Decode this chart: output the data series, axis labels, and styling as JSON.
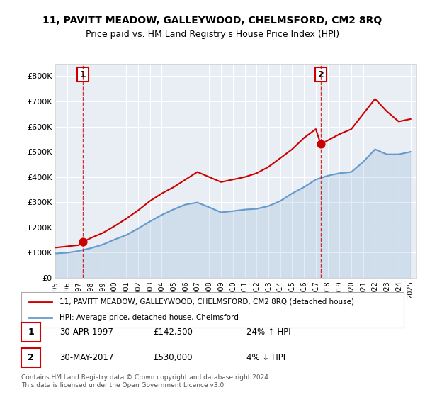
{
  "title": "11, PAVITT MEADOW, GALLEYWOOD, CHELMSFORD, CM2 8RQ",
  "subtitle": "Price paid vs. HM Land Registry's House Price Index (HPI)",
  "legend_line1": "11, PAVITT MEADOW, GALLEYWOOD, CHELMSFORD, CM2 8RQ (detached house)",
  "legend_line2": "HPI: Average price, detached house, Chelmsford",
  "footer": "Contains HM Land Registry data © Crown copyright and database right 2024.\nThis data is licensed under the Open Government Licence v3.0.",
  "transaction1_label": "1",
  "transaction1_date": "30-APR-1997",
  "transaction1_price": "£142,500",
  "transaction1_hpi": "24% ↑ HPI",
  "transaction1_year": 1997.33,
  "transaction1_value": 142500,
  "transaction2_label": "2",
  "transaction2_date": "30-MAY-2017",
  "transaction2_price": "£530,000",
  "transaction2_hpi": "4% ↓ HPI",
  "transaction2_year": 2017.42,
  "transaction2_value": 530000,
  "property_color": "#cc0000",
  "hpi_color": "#6699cc",
  "bg_color": "#e8eef4",
  "grid_color": "#ffffff",
  "ylim": [
    0,
    850000
  ],
  "xlim_start": 1995.0,
  "xlim_end": 2025.5,
  "yticks": [
    0,
    100000,
    200000,
    300000,
    400000,
    500000,
    600000,
    700000,
    800000
  ],
  "ytick_labels": [
    "£0",
    "£100K",
    "£200K",
    "£300K",
    "£400K",
    "£500K",
    "£600K",
    "£700K",
    "£800K"
  ],
  "xticks": [
    1995,
    1996,
    1997,
    1998,
    1999,
    2000,
    2001,
    2002,
    2003,
    2004,
    2005,
    2006,
    2007,
    2008,
    2009,
    2010,
    2011,
    2012,
    2013,
    2014,
    2015,
    2016,
    2017,
    2018,
    2019,
    2020,
    2021,
    2022,
    2023,
    2024,
    2025
  ],
  "hpi_years": [
    1995,
    1996,
    1997,
    1998,
    1999,
    2000,
    2001,
    2002,
    2003,
    2004,
    2005,
    2006,
    2007,
    2008,
    2009,
    2010,
    2011,
    2012,
    2013,
    2014,
    2015,
    2016,
    2017,
    2018,
    2019,
    2020,
    2021,
    2022,
    2023,
    2024,
    2025
  ],
  "hpi_values": [
    97000,
    100000,
    107000,
    118000,
    132000,
    152000,
    170000,
    196000,
    224000,
    250000,
    272000,
    291000,
    299000,
    280000,
    260000,
    265000,
    271000,
    274000,
    285000,
    305000,
    335000,
    360000,
    390000,
    405000,
    415000,
    420000,
    460000,
    510000,
    490000,
    490000,
    500000
  ],
  "property_years": [
    1995,
    1996,
    1997,
    1997.33,
    1998,
    1999,
    2000,
    2001,
    2002,
    2003,
    2004,
    2005,
    2006,
    2007,
    2008,
    2009,
    2010,
    2011,
    2012,
    2013,
    2014,
    2015,
    2016,
    2017,
    2017.42,
    2018,
    2019,
    2020,
    2021,
    2022,
    2023,
    2024,
    2025
  ],
  "property_values": [
    120000,
    125000,
    130000,
    142500,
    158000,
    178000,
    205000,
    235000,
    268000,
    305000,
    335000,
    360000,
    390000,
    420000,
    400000,
    380000,
    390000,
    400000,
    415000,
    440000,
    475000,
    510000,
    555000,
    590000,
    530000,
    545000,
    570000,
    590000,
    650000,
    710000,
    660000,
    620000,
    630000
  ]
}
